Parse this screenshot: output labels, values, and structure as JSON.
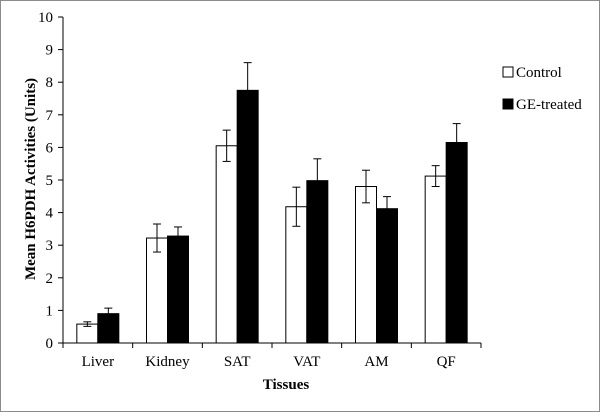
{
  "chart_data": {
    "type": "bar",
    "title": "",
    "xlabel": "Tissues",
    "ylabel": "Mean H6PDH Activities (Units)",
    "ylim": [
      0,
      10
    ],
    "yticks": [
      0,
      1,
      2,
      3,
      4,
      5,
      6,
      7,
      8,
      9,
      10
    ],
    "categories": [
      "Liver",
      "Kidney",
      "SAT",
      "VAT",
      "AM",
      "QF"
    ],
    "series": [
      {
        "name": "Control",
        "color": "#ffffff",
        "values": [
          0.58,
          3.22,
          6.05,
          4.18,
          4.8,
          5.12
        ],
        "errors": [
          0.07,
          0.43,
          0.48,
          0.6,
          0.5,
          0.32
        ]
      },
      {
        "name": "GE-treated",
        "color": "#000000",
        "values": [
          0.9,
          3.28,
          7.75,
          4.98,
          4.12,
          6.15
        ],
        "errors": [
          0.17,
          0.28,
          0.85,
          0.67,
          0.37,
          0.58
        ]
      }
    ],
    "grid": false,
    "legend_position": "right"
  }
}
